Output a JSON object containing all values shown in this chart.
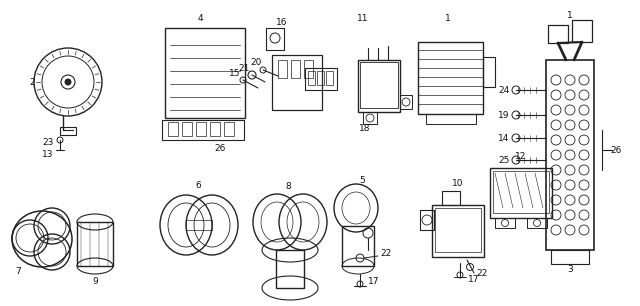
{
  "background_color": "#ffffff",
  "line_color": "#222222",
  "text_color": "#111111",
  "font_size": 6.5,
  "figure_width": 6.4,
  "figure_height": 3.06,
  "dpi": 100
}
